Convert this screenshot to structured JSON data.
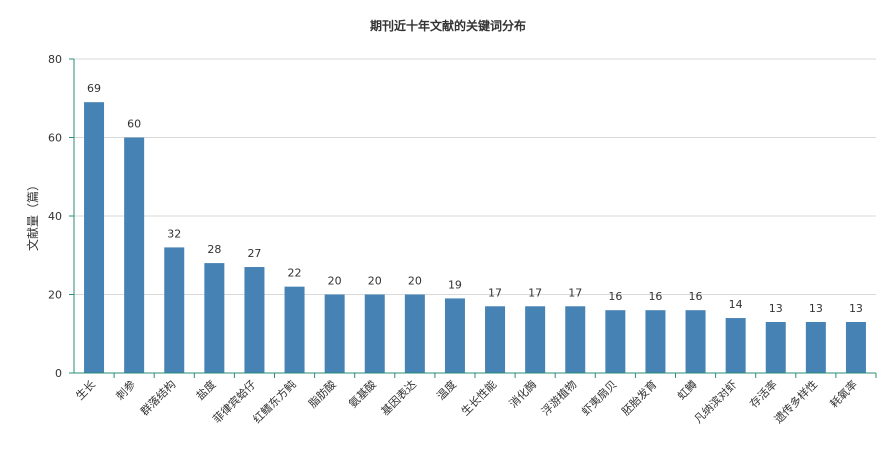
{
  "chart_data": {
    "type": "bar",
    "title": "期刊近十年文献的关键词分布",
    "xlabel": "",
    "ylabel": "文献量（篇）",
    "ylim": [
      0,
      80
    ],
    "yticks": [
      0,
      20,
      40,
      60,
      80
    ],
    "grid": true,
    "legend": "none",
    "categories": [
      "生长",
      "刺参",
      "群落结构",
      "盐度",
      "菲律宾蛤仔",
      "红鳍东方鲀",
      "脂肪酸",
      "氨基酸",
      "基因表达",
      "温度",
      "生长性能",
      "消化酶",
      "浮游植物",
      "虾夷扇贝",
      "胚胎发育",
      "虹鳟",
      "凡纳滨对虾",
      "存活率",
      "遗传多样性",
      "耗氧率"
    ],
    "values": [
      69,
      60,
      32,
      28,
      27,
      22,
      20,
      20,
      20,
      19,
      17,
      17,
      17,
      16,
      16,
      16,
      14,
      13,
      13,
      13
    ],
    "bar_color": "#4682b4",
    "axis_color": "#2a8c7a",
    "grid_color": "#d9d9d9"
  }
}
